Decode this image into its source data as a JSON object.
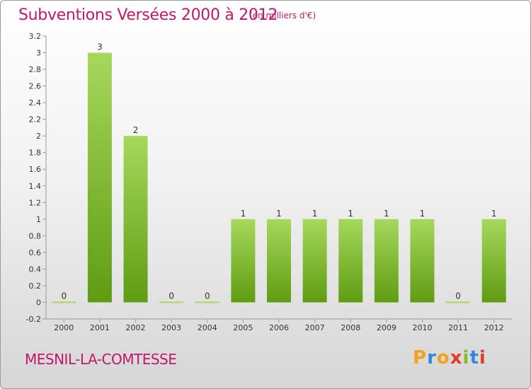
{
  "header": {
    "title": "Subventions Versées 2000 à 2012",
    "subtitle": "(en milliers d'€)"
  },
  "footer": {
    "commune": "MESNIL-LA-COMTESSE",
    "brand": "Proxiti"
  },
  "colors": {
    "title": "#c0186b",
    "bar_top": "#a6d85c",
    "bar_bottom": "#5f9c12",
    "brand_letters": [
      "#f4a21b",
      "#2f8ad8",
      "#f4a21b",
      "#e23a2c",
      "#7fbf2a",
      "#2f8ad8",
      "#e23a2c"
    ]
  },
  "chart_data": {
    "type": "bar",
    "categories": [
      "2000",
      "2001",
      "2002",
      "2003",
      "2004",
      "2005",
      "2006",
      "2007",
      "2008",
      "2009",
      "2010",
      "2011",
      "2012"
    ],
    "values": [
      0,
      3,
      2,
      0,
      0,
      1,
      1,
      1,
      1,
      1,
      1,
      0,
      1
    ],
    "data_labels": [
      "0",
      "3",
      "2",
      "0",
      "0",
      "1",
      "1",
      "1",
      "1",
      "1",
      "1",
      "0",
      "1"
    ],
    "ylim": [
      -0.2,
      3.2
    ],
    "yticks": [
      -0.2,
      0,
      0.2,
      0.4,
      0.6,
      0.8,
      1,
      1.2,
      1.4,
      1.6,
      1.8,
      2,
      2.2,
      2.4,
      2.6,
      2.8,
      3,
      3.2
    ],
    "ytick_labels": [
      "-0.2",
      "0",
      "0.2",
      "0.4",
      "0.6",
      "0.8",
      "1",
      "1.2",
      "1.4",
      "1.6",
      "1.8",
      "2",
      "2.2",
      "2.4",
      "2.6",
      "2.8",
      "3",
      "3.2"
    ],
    "grid": false,
    "legend": "none"
  }
}
